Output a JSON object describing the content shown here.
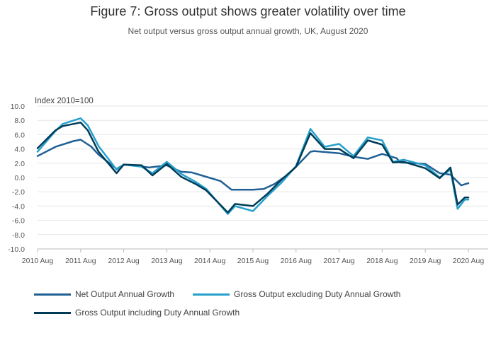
{
  "title": "Figure 7: Gross output shows greater volatility over time",
  "subtitle": "Net output versus gross output annual growth, UK, August 2020",
  "chart_data": {
    "type": "line",
    "title": "Figure 7: Gross output shows greater volatility over time",
    "subtitle": "Net output versus gross output annual growth, UK, August 2020",
    "ylabel": "Index 2010=100",
    "xlabel": "",
    "ylim": [
      -10,
      10
    ],
    "y_ticks": [
      "10.0",
      "8.0",
      "6.0",
      "4.0",
      "2.0",
      "0.0",
      "-2.0",
      "-4.0",
      "-6.0",
      "-8.0",
      "-10.0"
    ],
    "x_ticks": [
      "2010 Aug",
      "2011 Aug",
      "2012 Aug",
      "2013 Aug",
      "2014 Aug",
      "2015 Aug",
      "2016 Aug",
      "2017 Aug",
      "2018 Aug",
      "2019 Aug",
      "2020 Aug"
    ],
    "x_range": [
      "2010 Aug",
      "2020 Aug"
    ],
    "grid": true,
    "legend_position": "bottom",
    "series": [
      {
        "name": "Net Output Annual Growth",
        "color": "#206095",
        "points": [
          [
            "2010 Aug",
            3.0
          ],
          [
            "2011 Jan",
            4.3
          ],
          [
            "2011 Jun",
            5.1
          ],
          [
            "2011 Aug",
            5.3
          ],
          [
            "2011 Nov",
            4.3
          ],
          [
            "2012 Jan",
            3.2
          ],
          [
            "2012 Jun",
            1.2
          ],
          [
            "2012 Aug",
            1.8
          ],
          [
            "2012 Dec",
            1.6
          ],
          [
            "2013 Mar",
            1.4
          ],
          [
            "2013 Aug",
            1.7
          ],
          [
            "2013 Dec",
            0.8
          ],
          [
            "2014 Mar",
            0.7
          ],
          [
            "2014 Jul",
            0.1
          ],
          [
            "2014 Nov",
            -0.5
          ],
          [
            "2015 Feb",
            -1.7
          ],
          [
            "2015 Aug",
            -1.7
          ],
          [
            "2015 Nov",
            -1.6
          ],
          [
            "2016 Feb",
            -0.9
          ],
          [
            "2016 Jun",
            0.5
          ],
          [
            "2016 Aug",
            1.5
          ],
          [
            "2016 Dec",
            3.6
          ],
          [
            "2017 Jan",
            3.7
          ],
          [
            "2017 Aug",
            3.4
          ],
          [
            "2017 Dec",
            2.9
          ],
          [
            "2018 Apr",
            2.6
          ],
          [
            "2018 Aug",
            3.3
          ],
          [
            "2018 Dec",
            2.7
          ],
          [
            "2019 Jan",
            2.1
          ],
          [
            "2019 Aug",
            1.9
          ],
          [
            "2019 Dec",
            0.6
          ],
          [
            "2020 Mar",
            0.4
          ],
          [
            "2020 Jun",
            -1.1
          ],
          [
            "2020 Aug",
            -0.8
          ]
        ]
      },
      {
        "name": "Gross Output excluding Duty Annual Growth",
        "color": "#27a0cc",
        "points": [
          [
            "2010 Aug",
            3.6
          ],
          [
            "2011 Jan",
            6.5
          ],
          [
            "2011 Mar",
            7.5
          ],
          [
            "2011 Aug",
            8.3
          ],
          [
            "2011 Oct",
            7.3
          ],
          [
            "2012 Jan",
            4.4
          ],
          [
            "2012 Jun",
            1.1
          ],
          [
            "2012 Aug",
            1.8
          ],
          [
            "2013 Jan",
            1.5
          ],
          [
            "2013 Apr",
            0.6
          ],
          [
            "2013 Aug",
            2.2
          ],
          [
            "2013 Dec",
            0.5
          ],
          [
            "2014 Apr",
            -0.6
          ],
          [
            "2014 Jul",
            -1.6
          ],
          [
            "2015 Jan",
            -5.1
          ],
          [
            "2015 Mar",
            -4.0
          ],
          [
            "2015 Aug",
            -4.7
          ],
          [
            "2015 Dec",
            -2.6
          ],
          [
            "2016 Apr",
            -0.7
          ],
          [
            "2016 Aug",
            1.6
          ],
          [
            "2016 Dec",
            6.8
          ],
          [
            "2017 Apr",
            4.3
          ],
          [
            "2017 Aug",
            4.7
          ],
          [
            "2017 Dec",
            3.0
          ],
          [
            "2018 Apr",
            5.6
          ],
          [
            "2018 Aug",
            5.2
          ],
          [
            "2018 Nov",
            2.2
          ],
          [
            "2019 Feb",
            2.5
          ],
          [
            "2019 Aug",
            1.7
          ],
          [
            "2019 Dec",
            0.0
          ],
          [
            "2020 Mar",
            1.1
          ],
          [
            "2020 May",
            -4.4
          ],
          [
            "2020 Jul",
            -3.1
          ],
          [
            "2020 Aug",
            -3.1
          ]
        ]
      },
      {
        "name": "Gross Output including Duty Annual Growth",
        "color": "#003c57",
        "points": [
          [
            "2010 Aug",
            4.1
          ],
          [
            "2011 Jan",
            6.6
          ],
          [
            "2011 Mar",
            7.2
          ],
          [
            "2011 Aug",
            7.7
          ],
          [
            "2011 Oct",
            6.6
          ],
          [
            "2012 Jan",
            3.6
          ],
          [
            "2012 Jun",
            0.6
          ],
          [
            "2012 Aug",
            1.8
          ],
          [
            "2013 Jan",
            1.7
          ],
          [
            "2013 Apr",
            0.3
          ],
          [
            "2013 Aug",
            1.9
          ],
          [
            "2013 Dec",
            0.1
          ],
          [
            "2014 Apr",
            -0.9
          ],
          [
            "2014 Jul",
            -1.8
          ],
          [
            "2015 Jan",
            -4.9
          ],
          [
            "2015 Mar",
            -3.7
          ],
          [
            "2015 Aug",
            -4.0
          ],
          [
            "2015 Dec",
            -2.3
          ],
          [
            "2016 Apr",
            -0.3
          ],
          [
            "2016 Aug",
            1.5
          ],
          [
            "2016 Dec",
            6.2
          ],
          [
            "2017 Apr",
            4.0
          ],
          [
            "2017 Aug",
            4.0
          ],
          [
            "2017 Dec",
            2.7
          ],
          [
            "2018 Apr",
            5.2
          ],
          [
            "2018 Aug",
            4.6
          ],
          [
            "2018 Nov",
            2.1
          ],
          [
            "2019 Feb",
            2.2
          ],
          [
            "2019 Aug",
            1.3
          ],
          [
            "2019 Dec",
            -0.1
          ],
          [
            "2020 Mar",
            1.4
          ],
          [
            "2020 May",
            -3.8
          ],
          [
            "2020 Jul",
            -2.8
          ],
          [
            "2020 Aug",
            -2.8
          ]
        ]
      }
    ]
  }
}
